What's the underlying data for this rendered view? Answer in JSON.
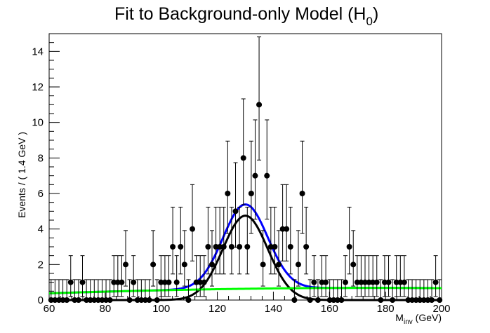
{
  "chart_data": {
    "type": "scatter",
    "title": "Fit to Background-only Model (H",
    "title_subscript": "0",
    "title_close": ")",
    "xlabel_main": "M",
    "xlabel_sub": "inv",
    "xlabel_unit": " (GeV)",
    "ylabel": "Events / ( 1.4 GeV )",
    "xlim": [
      60,
      200
    ],
    "ylim": [
      0,
      15
    ],
    "x_ticks": [
      60,
      80,
      100,
      120,
      140,
      160,
      180,
      200
    ],
    "y_ticks": [
      0,
      2,
      4,
      6,
      8,
      10,
      12,
      14
    ],
    "grid": false,
    "bin_width": 1.4,
    "series": [
      {
        "kind": "points_with_errors",
        "color": "#000000",
        "x": [
          60.7,
          62.1,
          63.5,
          64.9,
          66.3,
          67.7,
          69.1,
          70.5,
          71.9,
          73.3,
          74.7,
          76.1,
          77.5,
          78.9,
          80.3,
          81.7,
          83.1,
          84.5,
          85.9,
          87.3,
          88.7,
          90.1,
          91.5,
          92.9,
          94.3,
          95.7,
          97.1,
          98.5,
          99.9,
          101.3,
          102.7,
          104.1,
          105.5,
          106.9,
          108.3,
          109.7,
          111.1,
          112.5,
          113.9,
          115.3,
          116.7,
          118.1,
          119.5,
          120.9,
          122.3,
          123.7,
          125.1,
          126.5,
          127.9,
          129.3,
          130.7,
          132.1,
          133.5,
          134.9,
          136.3,
          137.7,
          139.1,
          140.5,
          141.9,
          143.3,
          144.7,
          146.1,
          147.5,
          148.9,
          150.3,
          151.7,
          153.1,
          154.5,
          155.9,
          157.3,
          158.7,
          160.1,
          161.5,
          162.9,
          164.3,
          165.7,
          167.1,
          168.5,
          169.9,
          171.3,
          172.7,
          174.1,
          175.5,
          176.9,
          178.3,
          179.7,
          181.1,
          182.5,
          183.9,
          185.3,
          186.7,
          188.1,
          189.5,
          190.9,
          192.3,
          193.7,
          195.1,
          196.5,
          197.9,
          199.3
        ],
        "y": [
          0,
          0,
          0,
          0,
          0,
          1,
          0,
          0,
          1,
          0,
          0,
          0,
          0,
          0,
          0,
          0,
          1,
          1,
          1,
          2,
          0,
          1,
          0,
          0,
          0,
          0,
          2,
          0,
          1,
          1,
          1,
          3,
          1,
          3,
          2,
          0,
          4,
          1,
          1,
          1,
          3,
          2,
          3,
          3,
          3,
          6,
          3,
          5,
          3,
          8,
          3,
          6,
          7,
          11,
          2,
          7,
          3,
          3,
          2,
          4,
          4,
          3,
          0,
          2,
          6,
          3,
          0,
          1,
          0,
          1,
          1,
          0,
          0,
          0,
          0,
          1,
          3,
          2,
          1,
          1,
          1,
          1,
          1,
          1,
          0,
          1,
          1,
          0,
          1,
          1,
          1,
          0,
          0,
          0,
          0,
          0,
          0,
          0,
          1,
          0
        ]
      },
      {
        "name": "",
        "kind": "curve",
        "color": "#0000ff",
        "description_model": "background + peak",
        "peak": {
          "mean": 130,
          "sigma": 8,
          "amplitude": 4.75
        },
        "background": {
          "a": 0.38,
          "b": 0.35,
          "c": 0.2
        }
      },
      {
        "kind": "curve",
        "color": "#000000",
        "peak": {
          "mean": 130,
          "sigma": 8,
          "amplitude": 4.75
        }
      },
      {
        "kind": "curve",
        "color": "#00ff00",
        "background": {
          "a": 0.38,
          "b": 0.35,
          "c": 0.2
        }
      }
    ]
  }
}
